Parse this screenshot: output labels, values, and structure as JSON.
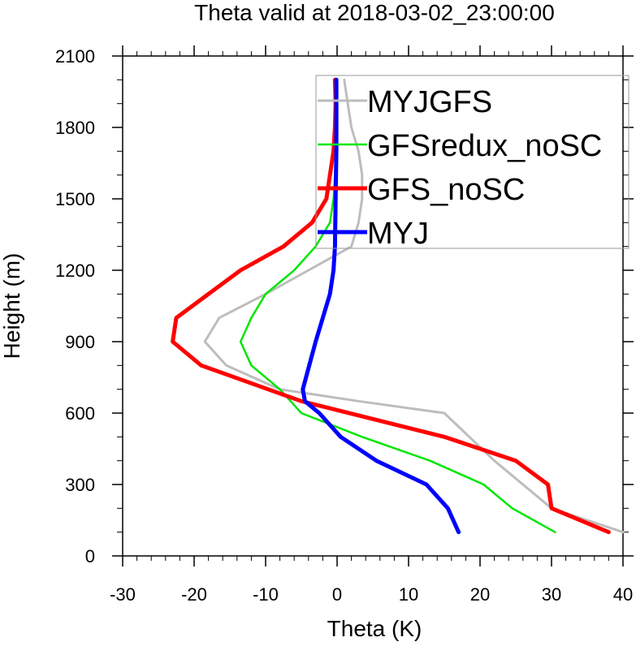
{
  "chart_data": {
    "type": "line",
    "title": "Theta valid at 2018-03-02_23:00:00",
    "xlabel": "Theta (K)",
    "ylabel": "Height (m)",
    "xlim": [
      -30,
      40
    ],
    "ylim": [
      0,
      2100
    ],
    "xticks": [
      "-30",
      "-20",
      "-10",
      "0",
      "10",
      "20",
      "30",
      "40"
    ],
    "yticks": [
      "0",
      "300",
      "600",
      "900",
      "1200",
      "1500",
      "1800",
      "2100"
    ],
    "grid": false,
    "legend_position": "top-right",
    "series": [
      {
        "name": "MYJGFS",
        "color": "#bdbdbd",
        "points": [
          [
            40,
            100
          ],
          [
            35,
            150
          ],
          [
            30,
            200
          ],
          [
            22,
            400
          ],
          [
            15,
            600
          ],
          [
            3,
            650
          ],
          [
            -8,
            700
          ],
          [
            -15.5,
            800
          ],
          [
            -18.5,
            900
          ],
          [
            -16.5,
            1000
          ],
          [
            -10,
            1100
          ],
          [
            -4,
            1200
          ],
          [
            2,
            1300
          ],
          [
            3,
            1400
          ],
          [
            3.5,
            1500
          ],
          [
            3.5,
            1600
          ],
          [
            3,
            1700
          ],
          [
            2,
            1800
          ],
          [
            1.5,
            1900
          ],
          [
            1,
            2000
          ]
        ]
      },
      {
        "name": "GFSredux_noSC",
        "color": "#00e600",
        "points": [
          [
            30.5,
            100
          ],
          [
            24.5,
            200
          ],
          [
            20.5,
            300
          ],
          [
            13,
            400
          ],
          [
            3.5,
            500
          ],
          [
            -5,
            600
          ],
          [
            -8,
            700
          ],
          [
            -12,
            800
          ],
          [
            -13.5,
            900
          ],
          [
            -12,
            1000
          ],
          [
            -10,
            1100
          ],
          [
            -6,
            1200
          ],
          [
            -3,
            1300
          ],
          [
            -1,
            1400
          ],
          [
            -0.5,
            1500
          ],
          [
            -0.3,
            1600
          ],
          [
            -0.2,
            1700
          ],
          [
            -0.1,
            1800
          ],
          [
            -0.1,
            1900
          ],
          [
            -0.2,
            2000
          ]
        ]
      },
      {
        "name": "GFS_noSC",
        "color": "#ff0000",
        "points": [
          [
            38,
            100
          ],
          [
            30,
            200
          ],
          [
            29.5,
            300
          ],
          [
            25,
            400
          ],
          [
            15,
            500
          ],
          [
            -5,
            650
          ],
          [
            -19,
            800
          ],
          [
            -23,
            900
          ],
          [
            -22.5,
            1000
          ],
          [
            -13.5,
            1200
          ],
          [
            -7.5,
            1300
          ],
          [
            -3.5,
            1400
          ],
          [
            -1.5,
            1500
          ],
          [
            -1,
            1600
          ],
          [
            -0.5,
            1700
          ],
          [
            -0.3,
            1800
          ],
          [
            -0.2,
            1900
          ],
          [
            -0.3,
            2000
          ]
        ]
      },
      {
        "name": "MYJ",
        "color": "#0000ff",
        "points": [
          [
            17,
            100
          ],
          [
            15.5,
            200
          ],
          [
            12.5,
            300
          ],
          [
            5.5,
            400
          ],
          [
            0.5,
            500
          ],
          [
            -2.5,
            600
          ],
          [
            -4.5,
            650
          ],
          [
            -4.8,
            700
          ],
          [
            -3,
            900
          ],
          [
            -1,
            1100
          ],
          [
            -0.5,
            1200
          ],
          [
            -0.3,
            1300
          ],
          [
            -0.2,
            1500
          ],
          [
            -0.1,
            1700
          ],
          [
            -0.1,
            1900
          ],
          [
            -0.1,
            2000
          ]
        ]
      }
    ]
  }
}
